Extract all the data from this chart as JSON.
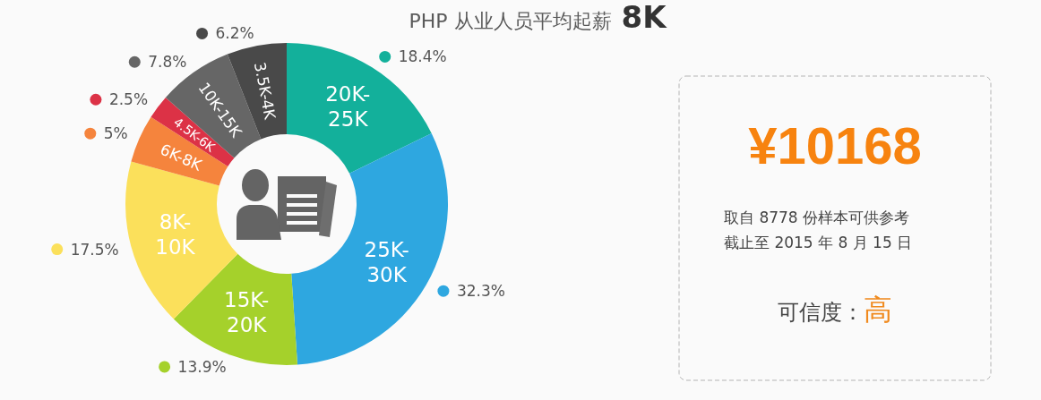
{
  "chart_data": [
    {
      "type": "donut",
      "title": "PHP 从业人员平均起薪 8K",
      "categories": [
        "20K-25K",
        "25K-30K",
        "15K-20K",
        "8K-10K",
        "6K-8K",
        "4.5K-6K",
        "10K-15K",
        "3.5K-4K"
      ],
      "values": [
        18.4,
        32.3,
        13.9,
        17.5,
        5,
        2.5,
        7.8,
        6.2
      ],
      "value_labels": [
        "18.4%",
        "32.3%",
        "13.9%",
        "17.5%",
        "5%",
        "2.5%",
        "7.8%",
        "6.2%"
      ],
      "colors": [
        "#13b09b",
        "#2ea7e0",
        "#a5d12b",
        "#fbe05b",
        "#f5843d",
        "#dc3246",
        "#666666",
        "#494949"
      ]
    },
    {
      "type": "other",
      "annotations": [
        "¥10168",
        "取自 8778 份样本可供参考",
        "截止至 2015 年 8 月 15 日",
        "可信度：",
        "高"
      ]
    }
  ]
}
